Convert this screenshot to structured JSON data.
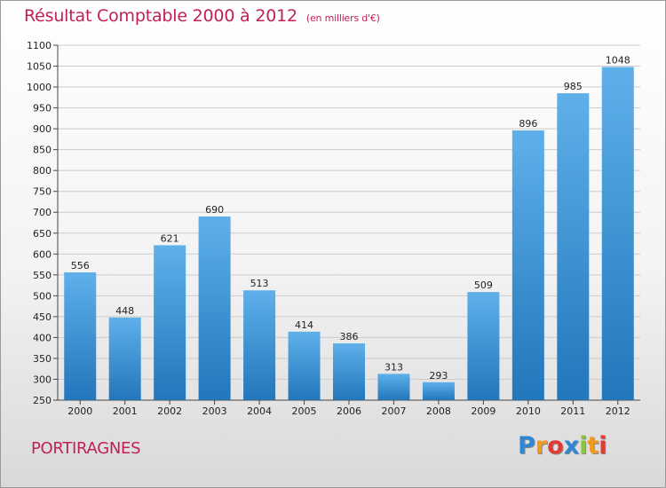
{
  "title": "Résultat Comptable 2000 à 2012",
  "subtitle": "(en milliers d'€)",
  "commune": "PORTIRAGNES",
  "brand": {
    "letters": [
      "P",
      "r",
      "o",
      "x",
      "i",
      "t",
      "i"
    ],
    "colors": [
      "#2f87d3",
      "#f39a1e",
      "#e23b36",
      "#2f87d3",
      "#8cc63e",
      "#f39a1e",
      "#e23b36"
    ]
  },
  "chart_data": {
    "type": "bar",
    "title": "Résultat Comptable 2000 à 2012",
    "xlabel": "",
    "ylabel": "",
    "ylim": [
      250,
      1100
    ],
    "yticks": [
      "250",
      "300",
      "350",
      "400",
      "450",
      "500",
      "550",
      "600",
      "650",
      "700",
      "750",
      "800",
      "850",
      "900",
      "950",
      "1000",
      "1050",
      "1100"
    ],
    "categories": [
      "2000",
      "2001",
      "2002",
      "2003",
      "2004",
      "2005",
      "2006",
      "2007",
      "2008",
      "2009",
      "2010",
      "2011",
      "2012"
    ],
    "values": [
      556,
      448,
      621,
      690,
      513,
      414,
      386,
      313,
      293,
      509,
      896,
      985,
      1048
    ],
    "labels": [
      "556",
      "448",
      "621",
      "690",
      "513",
      "414",
      "386",
      "313",
      "293",
      "509",
      "896",
      "985",
      "1048"
    ],
    "grid": true,
    "colors": {
      "bar_top": "#5fb0ea",
      "bar_bottom": "#2276ba",
      "label": "#222222",
      "grid": "#cccccc"
    }
  }
}
